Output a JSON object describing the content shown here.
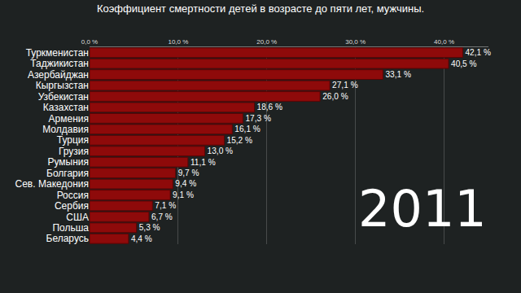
{
  "chart_data": {
    "type": "bar",
    "orientation": "horizontal",
    "title": "Коэффициент смертности детей в возрасте до пяти лет, мужчины.",
    "categories": [
      "Туркменистан",
      "Таджикистан",
      "Азербайджан",
      "Кыргызстан",
      "Узбекистан",
      "Казахстан",
      "Армения",
      "Молдавия",
      "Турция",
      "Грузия",
      "Румыния",
      "Болгария",
      "Сев. Македония",
      "Россия",
      "Сербия",
      "США",
      "Польша",
      "Беларусь"
    ],
    "values": [
      42.1,
      40.5,
      33.1,
      27.1,
      26.0,
      18.6,
      17.3,
      16.1,
      15.2,
      13.0,
      11.1,
      9.7,
      9.4,
      9.1,
      7.1,
      6.7,
      5.3,
      4.4
    ],
    "value_labels": [
      "42,1 %",
      "40,5 %",
      "33,1 %",
      "27,1 %",
      "26,0 %",
      "18,6 %",
      "17,3 %",
      "16,1 %",
      "15,2 %",
      "13,0 %",
      "11,1 %",
      "9,7 %",
      "9,4 %",
      "9,1 %",
      "7,1 %",
      "6,7 %",
      "5,3 %",
      "4,4 %"
    ],
    "data_labels": true,
    "color": "#8e0a0a",
    "xlim": [
      0,
      45
    ],
    "xticks": [
      {
        "value": 0,
        "label": "0,0 %"
      },
      {
        "value": 10,
        "label": "10,0 %"
      },
      {
        "value": 20,
        "label": "20,0 %"
      },
      {
        "value": 30,
        "label": "30,0 %"
      },
      {
        "value": 40,
        "label": "40,0 %"
      }
    ],
    "grid": true,
    "annotations": [
      "2011"
    ]
  }
}
